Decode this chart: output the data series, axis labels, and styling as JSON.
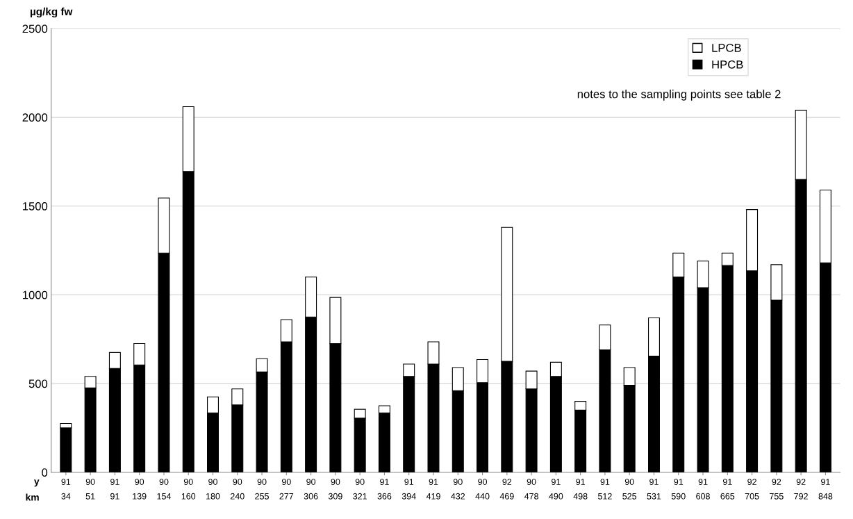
{
  "chart_data": {
    "type": "bar",
    "stacked": true,
    "ylabel": "µg/kg fw",
    "categories": [
      "91\n34",
      "90\n51",
      "91\n91",
      "90\n139",
      "90\n154",
      "90\n160",
      "90\n180",
      "90\n240",
      "90\n255",
      "90\n277",
      "90\n306",
      "90\n309",
      "90\n321",
      "91\n366",
      "91\n394",
      "91\n419",
      "90\n432",
      "90\n440",
      "92\n469",
      "90\n478",
      "91\n490",
      "91\n498",
      "91\n512",
      "90\n525",
      "91\n531",
      "91\n590",
      "91\n608",
      "91\n665",
      "92\n705",
      "92\n755",
      "92\n792",
      "91\n848"
    ],
    "series": [
      {
        "name": "HPCB",
        "color": "#000000",
        "values": [
          250,
          475,
          585,
          605,
          1235,
          1695,
          335,
          380,
          565,
          735,
          875,
          725,
          305,
          335,
          540,
          610,
          460,
          505,
          625,
          470,
          540,
          350,
          690,
          490,
          655,
          1100,
          1040,
          1165,
          1135,
          970,
          1650,
          1180
        ]
      },
      {
        "name": "LPCB",
        "color": "#ffffff",
        "values": [
          25,
          65,
          90,
          120,
          310,
          365,
          90,
          90,
          75,
          125,
          225,
          260,
          50,
          40,
          70,
          125,
          130,
          130,
          755,
          100,
          80,
          50,
          140,
          100,
          215,
          135,
          150,
          70,
          345,
          200,
          390,
          410
        ]
      }
    ],
    "ylim": [
      0,
      2500
    ],
    "yticks": [
      0,
      500,
      1000,
      1500,
      2000,
      2500
    ],
    "grid": "y",
    "legend": "top right",
    "annotations": [
      "y\nkm",
      "notes to the sampling points see table 2"
    ]
  }
}
